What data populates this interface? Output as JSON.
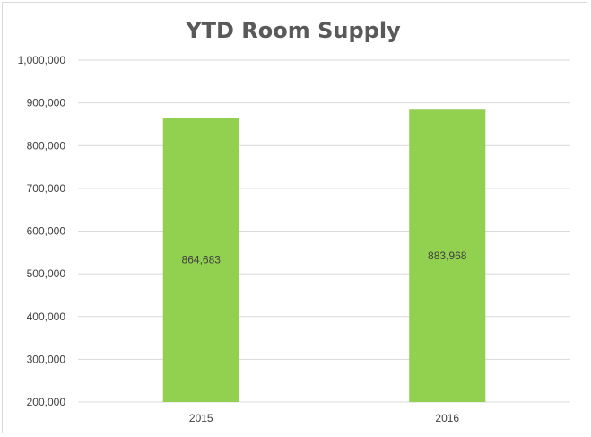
{
  "chart_data": {
    "type": "bar",
    "title": "YTD Room Supply",
    "xlabel": "",
    "ylabel": "",
    "categories": [
      "2015",
      "2016"
    ],
    "values": [
      864683,
      883968
    ],
    "data_labels": [
      "864,683",
      "883,968"
    ],
    "ylim": [
      200000,
      1000000
    ],
    "yticks": [
      200000,
      300000,
      400000,
      500000,
      600000,
      700000,
      800000,
      900000,
      1000000
    ],
    "ytick_labels": [
      "200,000",
      "300,000",
      "400,000",
      "500,000",
      "600,000",
      "700,000",
      "800,000",
      "900,000",
      "1,000,000"
    ],
    "grid": true,
    "legend": "none",
    "bar_color": "#92d050",
    "grid_color": "#d9d9d9"
  }
}
